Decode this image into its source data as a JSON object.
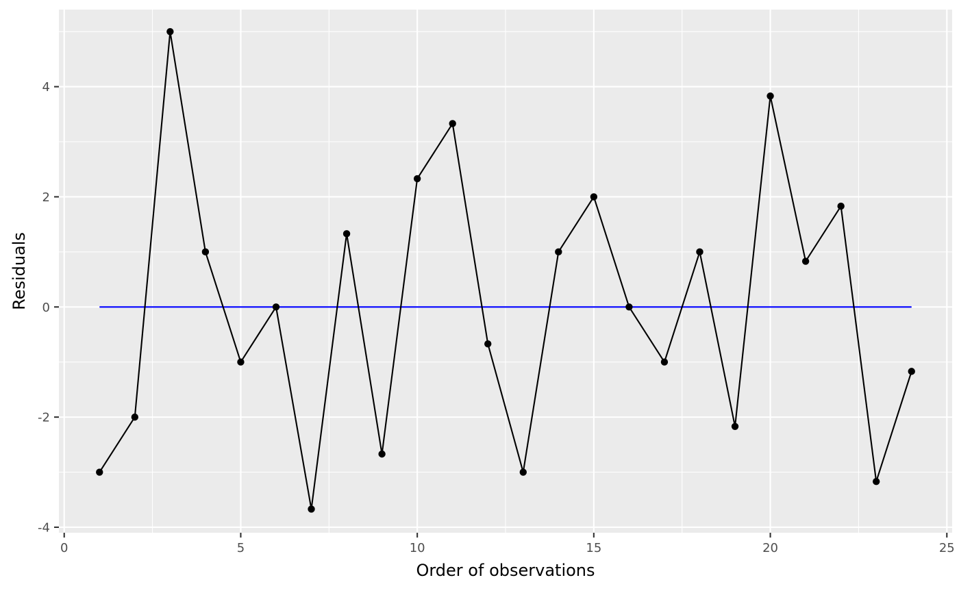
{
  "chart_data": {
    "type": "line",
    "xlabel": "Order of observations",
    "ylabel": "Residuals",
    "xlim": [
      -0.15,
      25.15
    ],
    "ylim": [
      -4.1,
      5.4
    ],
    "x_ticks": [
      0,
      5,
      10,
      15,
      20,
      25
    ],
    "y_ticks": [
      -4,
      -2,
      0,
      2,
      4
    ],
    "grid": true,
    "legend": "none",
    "series": [
      {
        "x": [
          1,
          2,
          3,
          4,
          5,
          6,
          7,
          8,
          9,
          10,
          11,
          12,
          13,
          14,
          15,
          16,
          17,
          18,
          19,
          20,
          21,
          22,
          23,
          24
        ],
        "y": [
          -3,
          -2,
          5,
          1,
          -1,
          0,
          -3.67,
          1.33,
          -2.67,
          2.33,
          3.33,
          -0.67,
          -3,
          1,
          2,
          0,
          -1,
          1,
          -2.17,
          3.83,
          0.83,
          1.83,
          -3.17,
          -1.17
        ],
        "color": "#000000",
        "marker": "point"
      }
    ],
    "reference_line": {
      "y": 0,
      "x_from": 1,
      "x_to": 24,
      "color": "#0000ff"
    }
  }
}
